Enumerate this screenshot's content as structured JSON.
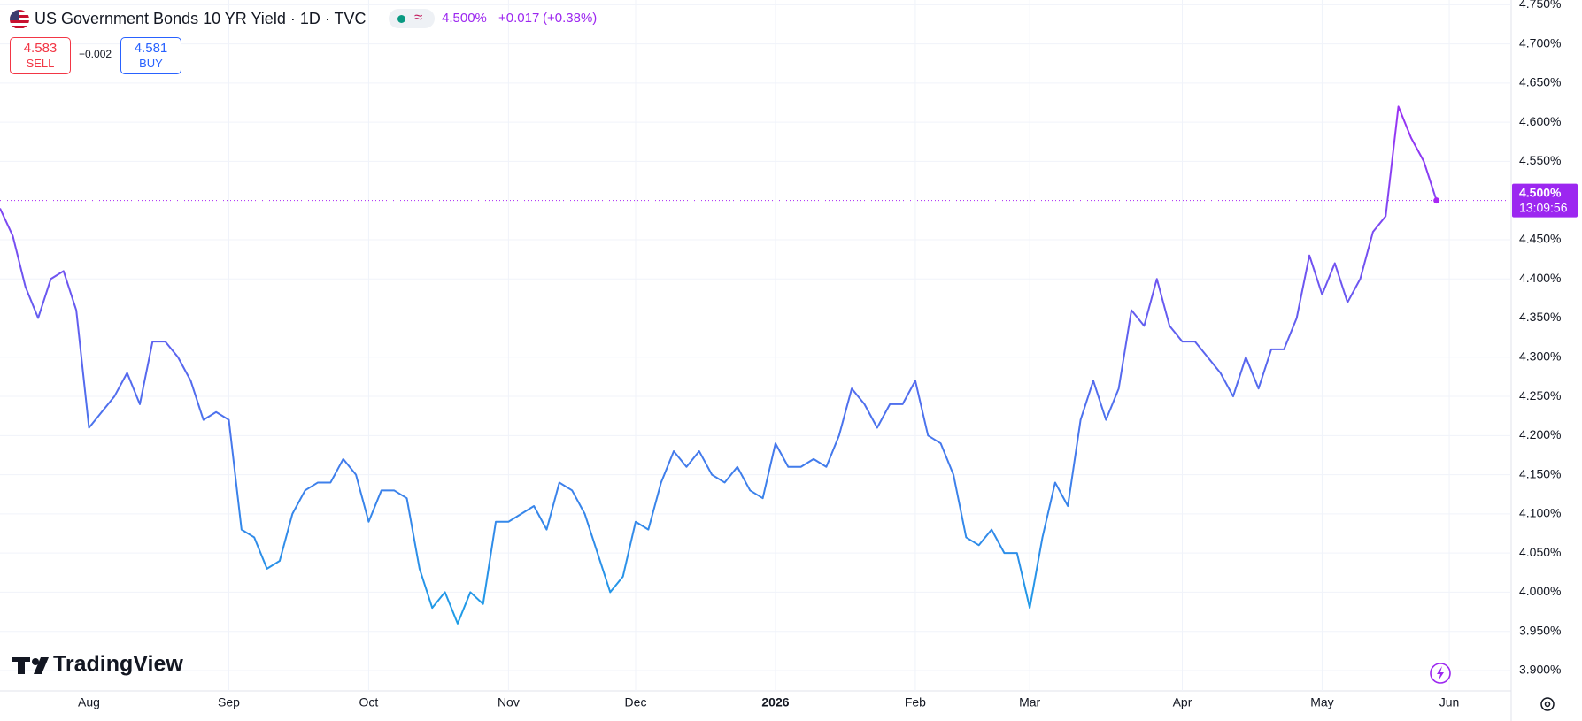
{
  "chart_data": {
    "type": "line",
    "title": "US Government Bonds 10 YR Yield · 1D · TVC",
    "change": "+0.017",
    "change_pct": "(+0.38%)",
    "sell": {
      "price": "4.583",
      "label": "SELL"
    },
    "buy": {
      "price": "4.581",
      "label": "BUY"
    },
    "spread": "−0.002",
    "watermark": "TradingView",
    "last_price": {
      "value": 4.5,
      "label": "4.500%"
    },
    "countdown": "13:09:56",
    "grid": true,
    "colors": [
      "#a826f5",
      "#5d63ef",
      "#1aa0e6"
    ],
    "ylim": [
      3.874,
      4.756
    ],
    "yticks": [
      {
        "value": 3.9,
        "label": "3.900%"
      },
      {
        "value": 3.95,
        "label": "3.950%"
      },
      {
        "value": 4.0,
        "label": "4.000%"
      },
      {
        "value": 4.05,
        "label": "4.050%"
      },
      {
        "value": 4.1,
        "label": "4.100%"
      },
      {
        "value": 4.15,
        "label": "4.150%"
      },
      {
        "value": 4.2,
        "label": "4.200%"
      },
      {
        "value": 4.25,
        "label": "4.250%"
      },
      {
        "value": 4.3,
        "label": "4.300%"
      },
      {
        "value": 4.35,
        "label": "4.350%"
      },
      {
        "value": 4.4,
        "label": "4.400%"
      },
      {
        "value": 4.45,
        "label": "4.450%"
      },
      {
        "value": 4.55,
        "label": "4.550%"
      },
      {
        "value": 4.6,
        "label": "4.600%"
      },
      {
        "value": 4.65,
        "label": "4.650%"
      },
      {
        "value": 4.7,
        "label": "4.700%"
      },
      {
        "value": 4.75,
        "label": "4.750%"
      }
    ],
    "categories": [
      null,
      null,
      null,
      null,
      null,
      null,
      null,
      "Aug",
      null,
      null,
      null,
      null,
      null,
      null,
      null,
      null,
      null,
      null,
      "Sep",
      null,
      null,
      null,
      null,
      null,
      null,
      null,
      null,
      null,
      null,
      "Oct",
      null,
      null,
      null,
      null,
      null,
      null,
      null,
      null,
      null,
      null,
      "Nov",
      null,
      null,
      null,
      null,
      null,
      null,
      null,
      null,
      null,
      "Dec",
      null,
      null,
      null,
      null,
      null,
      null,
      null,
      null,
      null,
      null,
      "2026",
      null,
      null,
      null,
      null,
      null,
      null,
      null,
      null,
      null,
      null,
      "Feb",
      null,
      null,
      null,
      null,
      null,
      null,
      null,
      null,
      "Mar",
      null,
      null,
      null,
      null,
      null,
      null,
      null,
      null,
      null,
      null,
      null,
      "Apr",
      null,
      null,
      null,
      null,
      null,
      null,
      null,
      null,
      null,
      null,
      "May",
      null,
      null,
      null,
      null,
      null,
      null,
      null,
      null,
      null,
      "Jun"
    ],
    "values": [
      4.49,
      4.455,
      4.39,
      4.35,
      4.4,
      4.41,
      4.36,
      4.21,
      4.23,
      4.25,
      4.28,
      4.24,
      4.32,
      4.32,
      4.3,
      4.27,
      4.22,
      4.23,
      4.22,
      4.08,
      4.07,
      4.03,
      4.04,
      4.1,
      4.13,
      4.14,
      4.14,
      4.17,
      4.15,
      4.09,
      4.13,
      4.13,
      4.12,
      4.03,
      3.98,
      4.0,
      3.96,
      4.0,
      3.985,
      4.09,
      4.09,
      4.1,
      4.11,
      4.08,
      4.14,
      4.13,
      4.1,
      4.05,
      4.0,
      4.02,
      4.09,
      4.08,
      4.14,
      4.18,
      4.16,
      4.18,
      4.15,
      4.14,
      4.16,
      4.13,
      4.12,
      4.19,
      4.16,
      4.16,
      4.17,
      4.16,
      4.2,
      4.26,
      4.24,
      4.21,
      4.24,
      4.24,
      4.27,
      4.2,
      4.19,
      4.15,
      4.07,
      4.06,
      4.08,
      4.05,
      4.05,
      3.98,
      4.07,
      4.14,
      4.11,
      4.22,
      4.27,
      4.22,
      4.26,
      4.36,
      4.34,
      4.4,
      4.34,
      4.32,
      4.32,
      4.3,
      4.28,
      4.25,
      4.3,
      4.26,
      4.31,
      4.31,
      4.35,
      4.43,
      4.38,
      4.42,
      4.37,
      4.4,
      4.46,
      4.48,
      4.62,
      4.58,
      4.55,
      4.5,
      null
    ]
  }
}
